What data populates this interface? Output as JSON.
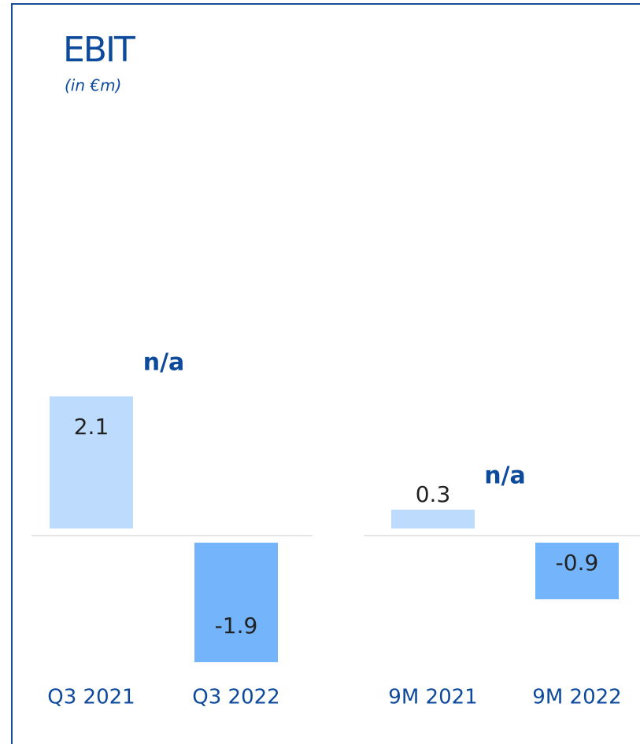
{
  "title": "EBIT",
  "subtitle": "(in €m)",
  "chart_data": [
    {
      "type": "bar",
      "categories": [
        "Q3 2021",
        "Q3 2022"
      ],
      "values": [
        2.1,
        -1.9
      ],
      "colors": [
        "#bddcfd",
        "#74b4fb"
      ],
      "annotation": "n/a"
    },
    {
      "type": "bar",
      "categories": [
        "9M 2021",
        "9M 2022"
      ],
      "values": [
        0.3,
        -0.9
      ],
      "colors": [
        "#bddcfd",
        "#74b4fb"
      ],
      "annotation": "n/a"
    }
  ]
}
